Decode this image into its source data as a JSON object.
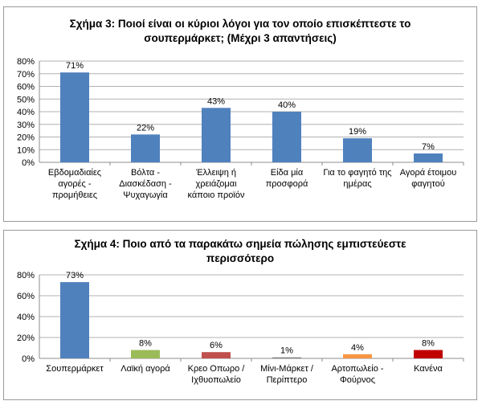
{
  "chart_data": [
    {
      "type": "bar",
      "title": "Σχήμα 3: Ποιοί είναι οι κύριοι λόγοι για τον οποίο επισκέπτεστε το σουπερμάρκετ; (Μέχρι 3 απαντήσεις)",
      "title_lines": [
        "Σχήμα 3: Ποιοί είναι οι κύριοι λόγοι για τον οποίο επισκέπτεστε το",
        "σουπερμάρκετ; (Μέχρι 3 απαντήσεις)"
      ],
      "categories": [
        [
          "Εβδομαδιαίες",
          "αγορές -",
          "προμήθειες"
        ],
        [
          "Βόλτα -",
          "Διασκέδαση -",
          "Ψυχαγωγία"
        ],
        [
          "Έλλειψη ή",
          "χρειάζομαι",
          "κάποιο προϊόν"
        ],
        [
          "Είδα μία",
          "προσφορά"
        ],
        [
          "Για το φαγητό της",
          "ημέρας"
        ],
        [
          "Αγορά έτοιμου",
          "φαγητού"
        ]
      ],
      "values": [
        71,
        22,
        43,
        40,
        19,
        7
      ],
      "data_labels": [
        "71%",
        "22%",
        "43%",
        "40%",
        "19%",
        "7%"
      ],
      "bar_colors": [
        "#4f81bd",
        "#4f81bd",
        "#4f81bd",
        "#4f81bd",
        "#4f81bd",
        "#4f81bd"
      ],
      "ylim": [
        0,
        80
      ],
      "yticks": [
        "0%",
        "10%",
        "20%",
        "30%",
        "40%",
        "50%",
        "60%",
        "70%",
        "80%"
      ],
      "grid": true
    },
    {
      "type": "bar",
      "title": "Σχήμα 4: Ποιο από τα παρακάτω σημεία πώλησης εμπιστεύεστε περισσότερο",
      "title_lines": [
        "Σχήμα 4: Ποιο από τα παρακάτω σημεία πώλησης εμπιστεύεστε",
        "περισσότερο"
      ],
      "categories": [
        [
          "Σουπερμάρκετ"
        ],
        [
          "Λαϊκή αγορά"
        ],
        [
          "Κρεο Οπωρο /",
          "Ιχθυοπωλείο"
        ],
        [
          "Μίνι-Μάρκετ /",
          "Περίπτερο"
        ],
        [
          "Αρτοπωλείο -",
          "Φούρνος"
        ],
        [
          "Κανένα"
        ]
      ],
      "values": [
        73,
        8,
        6,
        1,
        4,
        8
      ],
      "data_labels": [
        "73%",
        "8%",
        "6%",
        "1%",
        "4%",
        "8%"
      ],
      "bar_colors": [
        "#4f81bd",
        "#9bbb59",
        "#c0504d",
        "#7f7f7f",
        "#f79646",
        "#c00000"
      ],
      "ylim": [
        0,
        80
      ],
      "yticks": [
        "0%",
        "20%",
        "40%",
        "60%",
        "80%"
      ],
      "grid": true
    }
  ]
}
